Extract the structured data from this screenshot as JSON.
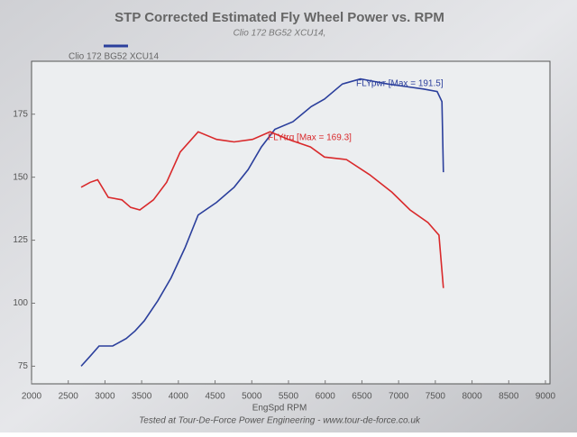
{
  "chart_data": {
    "type": "line",
    "title": "STP Corrected Estimated Fly Wheel Power vs. RPM",
    "subtitle": "Clio 172 BG52 XCU14,",
    "legend": "Clio 172 BG52 XCU14",
    "x_label": "EngSpd RPM",
    "footer": "Tested at Tour-De-Force Power Engineering - www.tour-de-force.co.uk",
    "xlim": [
      2000,
      9000
    ],
    "xticks": [
      2000,
      2500,
      3000,
      3500,
      4000,
      4500,
      5000,
      5500,
      6000,
      6500,
      7000,
      7500,
      8000,
      8500,
      9000
    ],
    "ylim": [
      68,
      196
    ],
    "yticks": [
      75,
      100,
      125,
      150,
      175
    ],
    "series": [
      {
        "label": "FLYpwr [Max = 191.5]",
        "color": "#2b3f9c",
        "x": [
          2675,
          2800,
          2920,
          3105,
          3290,
          3410,
          3535,
          3720,
          3900,
          4090,
          4270,
          4520,
          4760,
          4950,
          5130,
          5315,
          5560,
          5810,
          5990,
          6235,
          6480,
          6665,
          6850,
          7095,
          7340,
          7525,
          7590,
          7610
        ],
        "values": [
          75,
          79,
          83,
          83,
          86,
          89,
          93,
          101,
          110,
          122,
          135,
          140,
          146,
          153,
          162,
          169,
          172,
          178,
          181,
          187,
          189,
          188,
          187,
          186,
          185,
          184,
          180,
          152
        ]
      },
      {
        "label": "FLYtrq [Max = 169.3]",
        "color": "#d9292b",
        "x": [
          2675,
          2800,
          2900,
          3045,
          3230,
          3350,
          3475,
          3660,
          3840,
          4025,
          4270,
          4520,
          4760,
          5010,
          5250,
          5500,
          5800,
          5990,
          6290,
          6605,
          6910,
          7155,
          7400,
          7550,
          7610
        ],
        "values": [
          146,
          148,
          149,
          142,
          141,
          138,
          137,
          141,
          148,
          160,
          168,
          165,
          164,
          165,
          168,
          165,
          162,
          158,
          157,
          151,
          144,
          137,
          132,
          127,
          106
        ]
      }
    ]
  }
}
